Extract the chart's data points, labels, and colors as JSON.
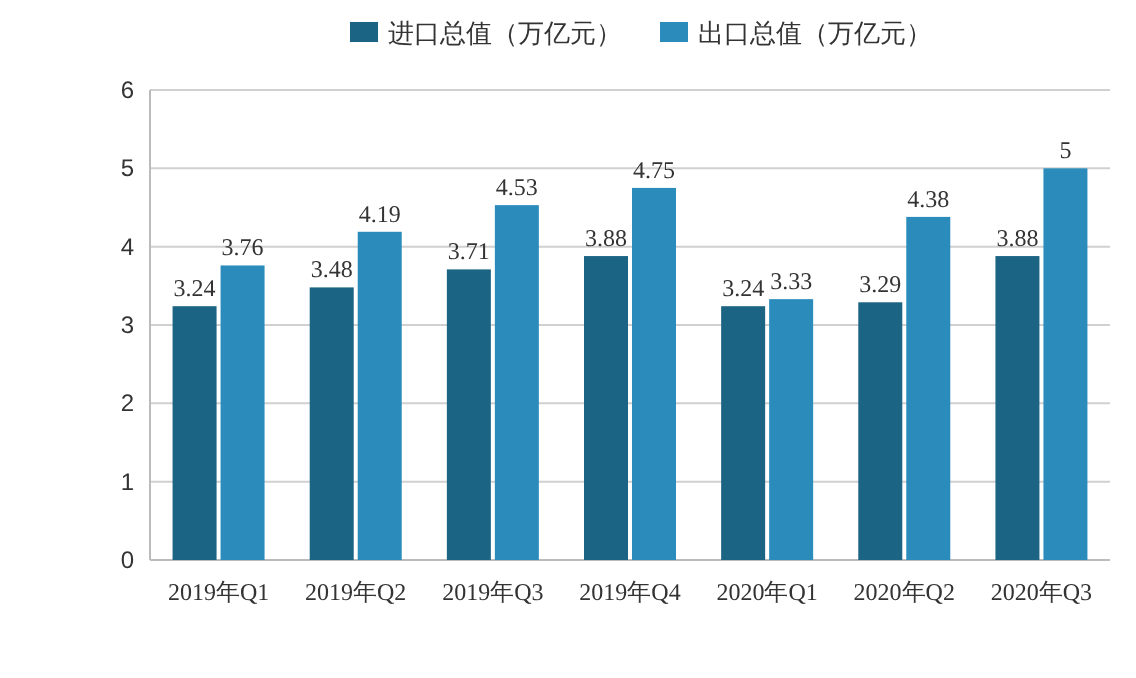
{
  "chart_data": {
    "type": "bar",
    "categories": [
      "2019年Q1",
      "2019年Q2",
      "2019年Q3",
      "2019年Q4",
      "2020年Q1",
      "2020年Q2",
      "2020年Q3"
    ],
    "series": [
      {
        "name": "进口总值（万亿元）",
        "color": "#1c6483",
        "values": [
          3.24,
          3.48,
          3.71,
          3.88,
          3.24,
          3.29,
          3.88
        ]
      },
      {
        "name": "出口总值（万亿元）",
        "color": "#2b8cbc",
        "values": [
          3.76,
          4.19,
          4.53,
          4.75,
          3.33,
          4.38,
          5
        ]
      }
    ],
    "ylim": [
      0,
      6
    ],
    "yticks": [
      0,
      1,
      2,
      3,
      4,
      5,
      6
    ],
    "grid": "y",
    "legend": "top",
    "data_labels": true
  }
}
